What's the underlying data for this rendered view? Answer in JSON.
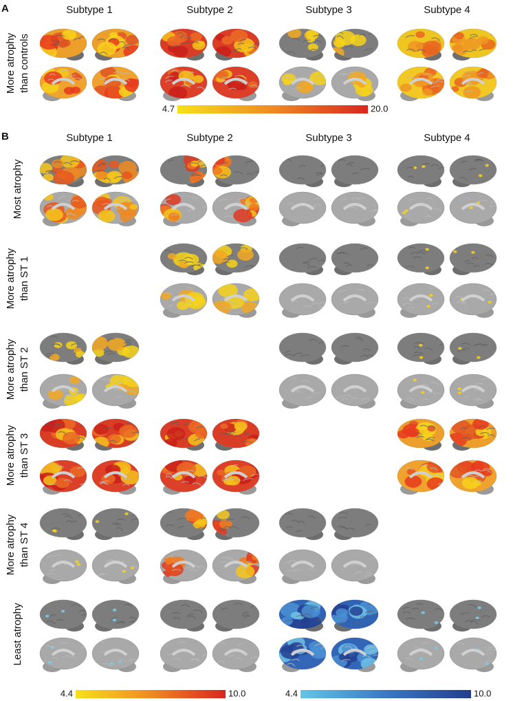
{
  "panel_a": {
    "label": "A",
    "columns": [
      "Subtype 1",
      "Subtype 2",
      "Subtype 3",
      "Subtype 4"
    ],
    "row_label": [
      "More atrophy",
      "than controls"
    ],
    "colorbar": {
      "min": "4.7",
      "max": "20.0"
    }
  },
  "panel_b": {
    "label": "B",
    "columns": [
      "Subtype 1",
      "Subtype 2",
      "Subtype 3",
      "Subtype 4"
    ],
    "rows": [
      [
        "Most atrophy"
      ],
      [
        "More atrophy",
        "than ST 1"
      ],
      [
        "More atrophy",
        "than ST 2"
      ],
      [
        "More atrophy",
        "than ST 3"
      ],
      [
        "More atrophy",
        "than ST 4"
      ],
      [
        "Least atrophy"
      ]
    ],
    "colorbars": [
      {
        "min": "4.4",
        "max": "10.0"
      },
      {
        "min": "4.4",
        "max": "10.0"
      }
    ]
  }
}
